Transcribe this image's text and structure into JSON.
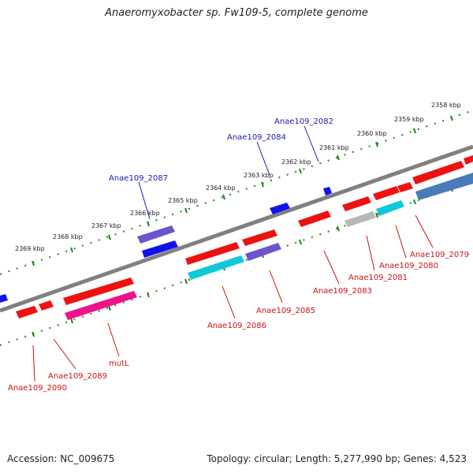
{
  "title": "Anaeromyxobacter sp. Fw109-5, complete genome",
  "footer": {
    "accession": "Accession: NC_009675",
    "summary": "Topology: circular; Length: 5,277,990 bp; Genes: 4,523"
  },
  "colors": {
    "backbone": "#808080",
    "tick": "#1a8a1a",
    "label_top": "#1a1aa8",
    "label_bottom": "#cc1111",
    "red": "#ee1111",
    "blue": "#1111ee",
    "purple": "#6a55cc",
    "cyan": "#11c8d8",
    "magenta": "#ee1188",
    "grey": "#b8b8b8",
    "steel": "#4a7ab8"
  },
  "kbp_labels": [
    "2358 kbp",
    "2359 kbp",
    "2360 kbp",
    "2361 kbp",
    "2362 kbp",
    "2363 kbp",
    "2364 kbp",
    "2365 kbp",
    "2366 kbp",
    "2367 kbp",
    "2368 kbp",
    "2369 kbp"
  ],
  "gene_labels_top": [
    "Anae109_2082",
    "Anae109_2084",
    "Anae109_2087"
  ],
  "gene_labels_bottom": [
    "Anae109_2079",
    "Anae109_2080",
    "Anae109_2081",
    "Anae109_2083",
    "Anae109_2085",
    "Anae109_2086",
    "mutL",
    "Anae109_2089",
    "Anae109_2090"
  ]
}
